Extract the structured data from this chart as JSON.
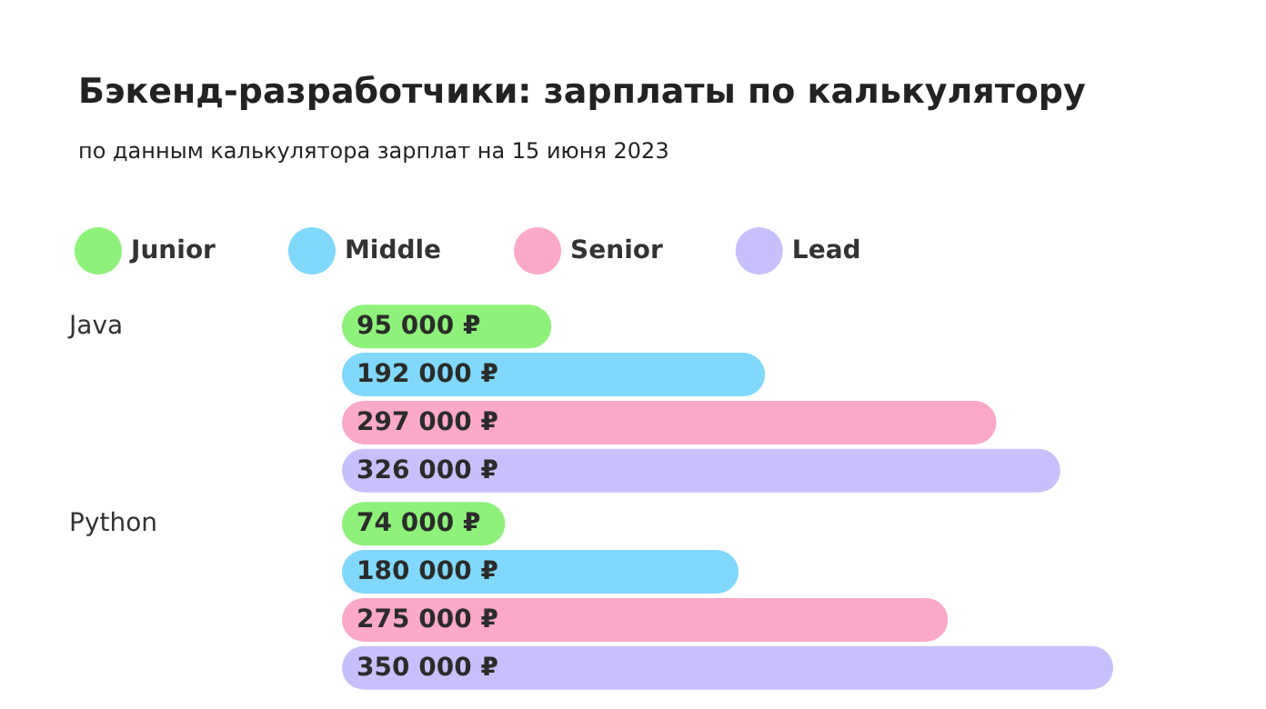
{
  "chart_data": {
    "type": "bar",
    "orientation": "horizontal",
    "title": "Бэкенд-разработчики: зарплаты по калькулятору",
    "subtitle": "по данным калькулятора зарплат на 15 июня 2023",
    "categories": [
      "Java",
      "Python"
    ],
    "legend": "top left",
    "series": [
      {
        "name": "Junior",
        "color": "#8ef27a",
        "values": [
          95000,
          74000
        ],
        "value_labels": [
          "95 000 ₽",
          "74 000 ₽"
        ]
      },
      {
        "name": "Middle",
        "color": "#80d8fc",
        "values": [
          192000,
          180000
        ],
        "value_labels": [
          "192 000 ₽",
          "180 000 ₽"
        ]
      },
      {
        "name": "Senior",
        "color": "#fca8c8",
        "values": [
          297000,
          275000
        ],
        "value_labels": [
          "297 000 ₽",
          "275 000 ₽"
        ]
      },
      {
        "name": "Lead",
        "color": "#c8c0fc",
        "values": [
          326000,
          350000
        ],
        "value_labels": [
          "326 000 ₽",
          "350 000 ₽"
        ]
      }
    ]
  }
}
